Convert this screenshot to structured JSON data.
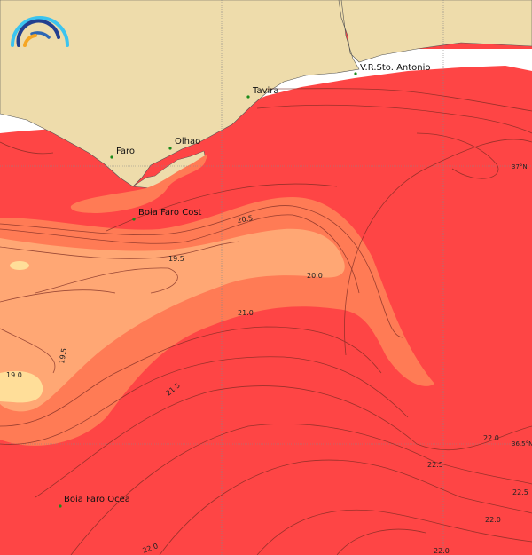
{
  "map": {
    "colors": {
      "land": "#eedcab",
      "no_data": "#ffffff",
      "sst_warm": "#fe4545",
      "sst_mid": "#ff7b55",
      "sst_cool": "#ffa774",
      "sst_coolest": "#ffde99",
      "contour": "#7a2a22",
      "station_marker": "#1a8a1a"
    },
    "places": [
      {
        "name": "Faro"
      },
      {
        "name": "Olhao"
      },
      {
        "name": "Tavira"
      },
      {
        "name": "V.R.Sto. Antonio"
      }
    ],
    "stations": [
      {
        "name": "Boia Faro Cost"
      },
      {
        "name": "Boia Faro Ocea"
      }
    ],
    "gridline_labels": [
      "37°N",
      "36.5°N"
    ],
    "contour_labels": [
      "20.5",
      "19.5",
      "20.0",
      "21.0",
      "19.5",
      "19.0",
      "21.5",
      "22.0",
      "22.5",
      "22.5",
      "22.0",
      "22.0",
      "22.0"
    ],
    "logo_icon": "wave-arcs-logo-icon"
  }
}
